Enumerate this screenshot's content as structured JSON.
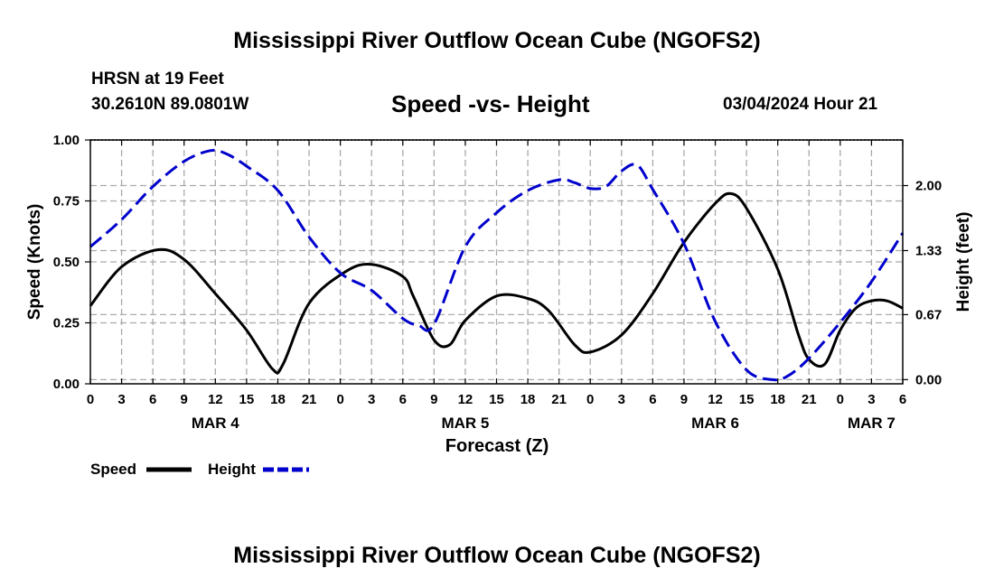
{
  "header": {
    "title": "Mississippi River Outflow Ocean Cube (NGOFS2)",
    "station": "HRSN at 19 Feet",
    "location": "30.2610N  89.0801W",
    "subtitle": "Speed -vs- Height",
    "datetime": "03/04/2024 Hour 21"
  },
  "footer": {
    "title": "Mississippi River Outflow Ocean Cube (NGOFS2)"
  },
  "legend": {
    "speed_label": "Speed",
    "height_label": "Height"
  },
  "colors": {
    "speed": "#000000",
    "height": "#0000cc",
    "grid": "#aaaaaa"
  },
  "chart_data": {
    "type": "line",
    "title": "Speed -vs- Height",
    "xlabel": "Forecast (Z)",
    "ylabel_left": "Speed (Knots)",
    "ylabel_right": "Height (feet)",
    "x_range_hours": [
      0,
      78
    ],
    "x_ticks": [
      {
        "h": 0,
        "label": "0"
      },
      {
        "h": 3,
        "label": "3"
      },
      {
        "h": 6,
        "label": "6"
      },
      {
        "h": 9,
        "label": "9"
      },
      {
        "h": 12,
        "label": "12"
      },
      {
        "h": 15,
        "label": "15"
      },
      {
        "h": 18,
        "label": "18"
      },
      {
        "h": 21,
        "label": "21"
      },
      {
        "h": 24,
        "label": "0"
      },
      {
        "h": 27,
        "label": "3"
      },
      {
        "h": 30,
        "label": "6"
      },
      {
        "h": 33,
        "label": "9"
      },
      {
        "h": 36,
        "label": "12"
      },
      {
        "h": 39,
        "label": "15"
      },
      {
        "h": 42,
        "label": "18"
      },
      {
        "h": 45,
        "label": "21"
      },
      {
        "h": 48,
        "label": "0"
      },
      {
        "h": 51,
        "label": "3"
      },
      {
        "h": 54,
        "label": "6"
      },
      {
        "h": 57,
        "label": "9"
      },
      {
        "h": 60,
        "label": "12"
      },
      {
        "h": 63,
        "label": "15"
      },
      {
        "h": 66,
        "label": "18"
      },
      {
        "h": 69,
        "label": "21"
      },
      {
        "h": 72,
        "label": "0"
      },
      {
        "h": 75,
        "label": "3"
      },
      {
        "h": 78,
        "label": "6"
      }
    ],
    "date_labels": [
      {
        "h": 12,
        "label": "MAR 4"
      },
      {
        "h": 36,
        "label": "MAR 5"
      },
      {
        "h": 60,
        "label": "MAR 6"
      },
      {
        "h": 75,
        "label": "MAR 7"
      }
    ],
    "y_left": {
      "min": 0,
      "max": 1.0,
      "ticks": [
        "0.00",
        "0.25",
        "0.50",
        "0.75",
        "1.00"
      ]
    },
    "y_right": {
      "min": -0.043,
      "max": 2.47,
      "ticks": [
        {
          "v": 0.0,
          "label": "0.00"
        },
        {
          "v": 0.67,
          "label": "0.67"
        },
        {
          "v": 1.33,
          "label": "1.33"
        },
        {
          "v": 2.0,
          "label": "2.00"
        }
      ]
    },
    "series": [
      {
        "name": "Speed",
        "axis": "left",
        "style": "solid",
        "x": [
          0,
          3,
          6.5,
          9,
          12,
          15,
          17.5,
          18.5,
          21,
          24.5,
          27,
          30,
          31,
          33,
          34.5,
          36,
          39,
          42,
          44,
          46.5,
          48,
          51,
          54,
          57,
          60,
          61.5,
          63,
          66,
          68,
          69,
          70.5,
          72,
          73.5,
          75,
          76.5,
          78
        ],
        "y": [
          0.32,
          0.48,
          0.55,
          0.51,
          0.37,
          0.22,
          0.06,
          0.08,
          0.33,
          0.46,
          0.49,
          0.44,
          0.36,
          0.18,
          0.16,
          0.26,
          0.36,
          0.35,
          0.3,
          0.16,
          0.13,
          0.2,
          0.37,
          0.58,
          0.74,
          0.78,
          0.72,
          0.47,
          0.2,
          0.1,
          0.08,
          0.22,
          0.31,
          0.34,
          0.34,
          0.31
        ]
      },
      {
        "name": "Height",
        "axis": "right",
        "style": "dashed",
        "x": [
          0,
          3,
          6,
          9,
          11.5,
          13,
          15,
          18,
          21,
          24,
          27,
          30,
          31.5,
          33,
          36,
          39,
          42,
          45,
          46.5,
          48,
          49.5,
          51,
          52.5,
          54,
          57,
          60,
          63,
          65.5,
          67,
          69,
          72,
          75,
          78
        ],
        "y": [
          1.37,
          1.65,
          1.99,
          2.25,
          2.36,
          2.33,
          2.2,
          1.95,
          1.47,
          1.1,
          0.92,
          0.63,
          0.56,
          0.57,
          1.37,
          1.72,
          1.95,
          2.06,
          2.03,
          1.97,
          1.99,
          2.15,
          2.21,
          1.96,
          1.4,
          0.6,
          0.1,
          0.0,
          0.04,
          0.22,
          0.59,
          1.01,
          1.51
        ]
      }
    ]
  }
}
